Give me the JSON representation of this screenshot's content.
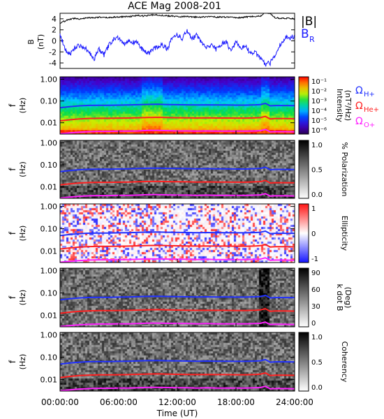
{
  "title": "ACE Mag 2008-201",
  "colors": {
    "B_total": "#000000",
    "B_R": "#1a1aff",
    "H_plus": "#2030ff",
    "He_plus": "#ff2020",
    "O_plus": "#ff20ff",
    "frame": "#000000"
  },
  "chart_data": [
    {
      "type": "line",
      "panel": "magnetic-field",
      "ylabel": "B",
      "yunit": "(nT)",
      "ylim": [
        -5,
        5
      ],
      "yticks": [
        4,
        2,
        0,
        -2,
        -4
      ],
      "xlim_hours": [
        0,
        24
      ],
      "legend": [
        "|B|",
        "BR"
      ],
      "legend_sub": "R",
      "series": [
        {
          "name": "|B|",
          "color": "#000000",
          "x_hours": [
            0,
            0.5,
            1,
            1.5,
            2,
            2.5,
            3,
            3.5,
            4,
            4.5,
            5,
            5.5,
            6,
            6.5,
            7,
            7.5,
            8,
            8.5,
            9,
            9.5,
            10,
            10.5,
            11,
            11.5,
            12,
            12.5,
            13,
            13.5,
            14,
            14.5,
            15,
            15.5,
            16,
            16.5,
            17,
            17.5,
            18,
            18.5,
            19,
            19.5,
            20,
            20.5,
            21,
            21.5,
            22,
            22.5,
            23,
            23.5,
            24
          ],
          "values": [
            3.2,
            3.6,
            3.9,
            4.1,
            4.0,
            4.1,
            4.2,
            4.2,
            4.3,
            4.2,
            4.2,
            4.3,
            4.3,
            4.4,
            4.4,
            4.5,
            4.6,
            4.5,
            4.6,
            4.7,
            4.7,
            4.6,
            4.5,
            4.5,
            4.4,
            4.4,
            4.4,
            4.3,
            4.3,
            4.3,
            4.4,
            4.4,
            4.3,
            4.3,
            4.3,
            4.3,
            4.2,
            4.2,
            4.3,
            4.4,
            4.4,
            4.5,
            5.1,
            5.0,
            4.2,
            4.1,
            4.1,
            4.1,
            4.0
          ]
        },
        {
          "name": "BR",
          "color": "#1a1aff",
          "x_hours": [
            0,
            0.5,
            1,
            1.5,
            2,
            2.5,
            3,
            3.5,
            4,
            4.5,
            5,
            5.5,
            6,
            6.5,
            7,
            7.5,
            8,
            8.5,
            9,
            9.5,
            10,
            10.5,
            11,
            11.5,
            12,
            12.5,
            13,
            13.5,
            14,
            14.5,
            15,
            15.5,
            16,
            16.5,
            17,
            17.5,
            18,
            18.5,
            19,
            19.5,
            20,
            20.5,
            21,
            21.5,
            22,
            22.5,
            23,
            23.5,
            24
          ],
          "values": [
            1.2,
            -1.5,
            -2.5,
            -1.2,
            -0.8,
            -1.3,
            -2.0,
            -3.2,
            -1.5,
            -2.6,
            -0.8,
            0.3,
            0.6,
            -0.5,
            0.1,
            -0.3,
            -0.4,
            -1.8,
            -2.4,
            -1.6,
            -1.0,
            -0.8,
            -1.4,
            0.8,
            1.0,
            0.5,
            1.8,
            0.5,
            1.0,
            -0.3,
            -1.3,
            -0.9,
            -1.6,
            -0.6,
            -0.2,
            -1.9,
            -0.3,
            -1.3,
            -0.9,
            -2.4,
            -2.2,
            -3.2,
            -4.3,
            -4.0,
            -2.6,
            -0.8,
            0.5,
            0.6,
            0.8
          ]
        }
      ]
    },
    {
      "type": "heatmap",
      "panel": "intensity",
      "ylabel": "f",
      "yunit": "(Hz)",
      "yscale": "log",
      "ylim": [
        0.003,
        1.3
      ],
      "yticks": [
        "1.00",
        "0.10",
        "0.01"
      ],
      "colorbar_label": "Intensity",
      "colorbar_unit": "(nT²/Hz)",
      "colorbar_ticks": [
        "10⁻¹",
        "10⁻²",
        "10⁻³",
        "10⁻⁴",
        "10⁻⁵",
        "10⁻⁶"
      ],
      "colormap": "rainbow"
    },
    {
      "type": "heatmap",
      "panel": "polarization",
      "ylabel": "f",
      "yunit": "(Hz)",
      "yscale": "log",
      "ylim": [
        0.003,
        1.3
      ],
      "yticks": [
        "1.00",
        "0.10",
        "0.01"
      ],
      "colorbar_label": "% Polarization",
      "colorbar_ticks": [
        "1.0",
        "0.5",
        "0.0"
      ],
      "colormap": "greys"
    },
    {
      "type": "heatmap",
      "panel": "ellipticity",
      "ylabel": "f",
      "yunit": "(Hz)",
      "yscale": "log",
      "ylim": [
        0.003,
        1.3
      ],
      "yticks": [
        "1.00",
        "0.10",
        "0.01"
      ],
      "colorbar_label": "Ellipticity",
      "colorbar_ticks": [
        "1",
        "0",
        "-1"
      ],
      "colormap": "blue-white-red"
    },
    {
      "type": "heatmap",
      "panel": "wave-normal-angle",
      "ylabel": "f",
      "yunit": "(Hz)",
      "yscale": "log",
      "ylim": [
        0.003,
        1.3
      ],
      "yticks": [
        "1.00",
        "0.10",
        "0.01"
      ],
      "colorbar_label": "k dot B",
      "colorbar_unit": "(Deg)",
      "colorbar_ticks": [
        "90",
        "60",
        "30",
        "0"
      ],
      "colormap": "greys"
    },
    {
      "type": "heatmap",
      "panel": "coherency",
      "ylabel": "f",
      "yunit": "(Hz)",
      "yscale": "log",
      "ylim": [
        0.003,
        1.3
      ],
      "yticks": [
        "1.00",
        "0.10",
        "0.01"
      ],
      "colorbar_label": "Coherency",
      "colorbar_ticks": [
        "1.0",
        "0.5",
        "0.0"
      ],
      "colormap": "greys"
    }
  ],
  "gyrofrequencies": {
    "legend": [
      "ΩH+",
      "ΩHe+",
      "ΩO+"
    ],
    "series": [
      {
        "name": "ΩH+",
        "color": "#2030ff",
        "x_hours": [
          0,
          1,
          2,
          3,
          4,
          5,
          6,
          7,
          8,
          9,
          10,
          11,
          12,
          13,
          14,
          15,
          16,
          17,
          18,
          19,
          20,
          20.5,
          21,
          21.5,
          22,
          23,
          24
        ],
        "values": [
          0.049,
          0.055,
          0.06,
          0.063,
          0.064,
          0.064,
          0.065,
          0.066,
          0.068,
          0.07,
          0.071,
          0.069,
          0.068,
          0.067,
          0.066,
          0.067,
          0.066,
          0.066,
          0.065,
          0.065,
          0.067,
          0.069,
          0.078,
          0.06,
          0.062,
          0.062,
          0.061
        ]
      },
      {
        "name": "ΩHe+",
        "color": "#ff2020",
        "x_hours": [
          0,
          1,
          2,
          3,
          4,
          5,
          6,
          7,
          8,
          9,
          10,
          11,
          12,
          13,
          14,
          15,
          16,
          17,
          18,
          19,
          20,
          20.5,
          21,
          21.5,
          22,
          23,
          24
        ],
        "values": [
          0.0122,
          0.0137,
          0.015,
          0.0157,
          0.016,
          0.016,
          0.0163,
          0.0165,
          0.017,
          0.0175,
          0.0177,
          0.0172,
          0.017,
          0.0168,
          0.0165,
          0.0167,
          0.0165,
          0.0165,
          0.0163,
          0.0163,
          0.0168,
          0.0172,
          0.0195,
          0.015,
          0.0155,
          0.0155,
          0.0152
        ]
      },
      {
        "name": "ΩO+",
        "color": "#ff20ff",
        "x_hours": [
          0,
          1,
          2,
          3,
          4,
          5,
          6,
          7,
          8,
          9,
          10,
          11,
          12,
          13,
          14,
          15,
          16,
          17,
          18,
          19,
          20,
          20.5,
          21,
          21.5,
          22,
          23,
          24
        ],
        "values": [
          0.0031,
          0.0034,
          0.0037,
          0.0039,
          0.004,
          0.004,
          0.0041,
          0.0041,
          0.0042,
          0.0044,
          0.0044,
          0.0043,
          0.0042,
          0.0042,
          0.0041,
          0.0042,
          0.0041,
          0.0041,
          0.0041,
          0.0041,
          0.0042,
          0.0043,
          0.0049,
          0.0038,
          0.0039,
          0.0039,
          0.0038
        ]
      }
    ]
  },
  "xaxis": {
    "label": "Time (UT)",
    "ticks": [
      "00:00:00",
      "06:00:00",
      "12:00:00",
      "18:00:00",
      "24:00:00"
    ],
    "tick_hours": [
      0,
      6,
      12,
      18,
      24
    ]
  }
}
